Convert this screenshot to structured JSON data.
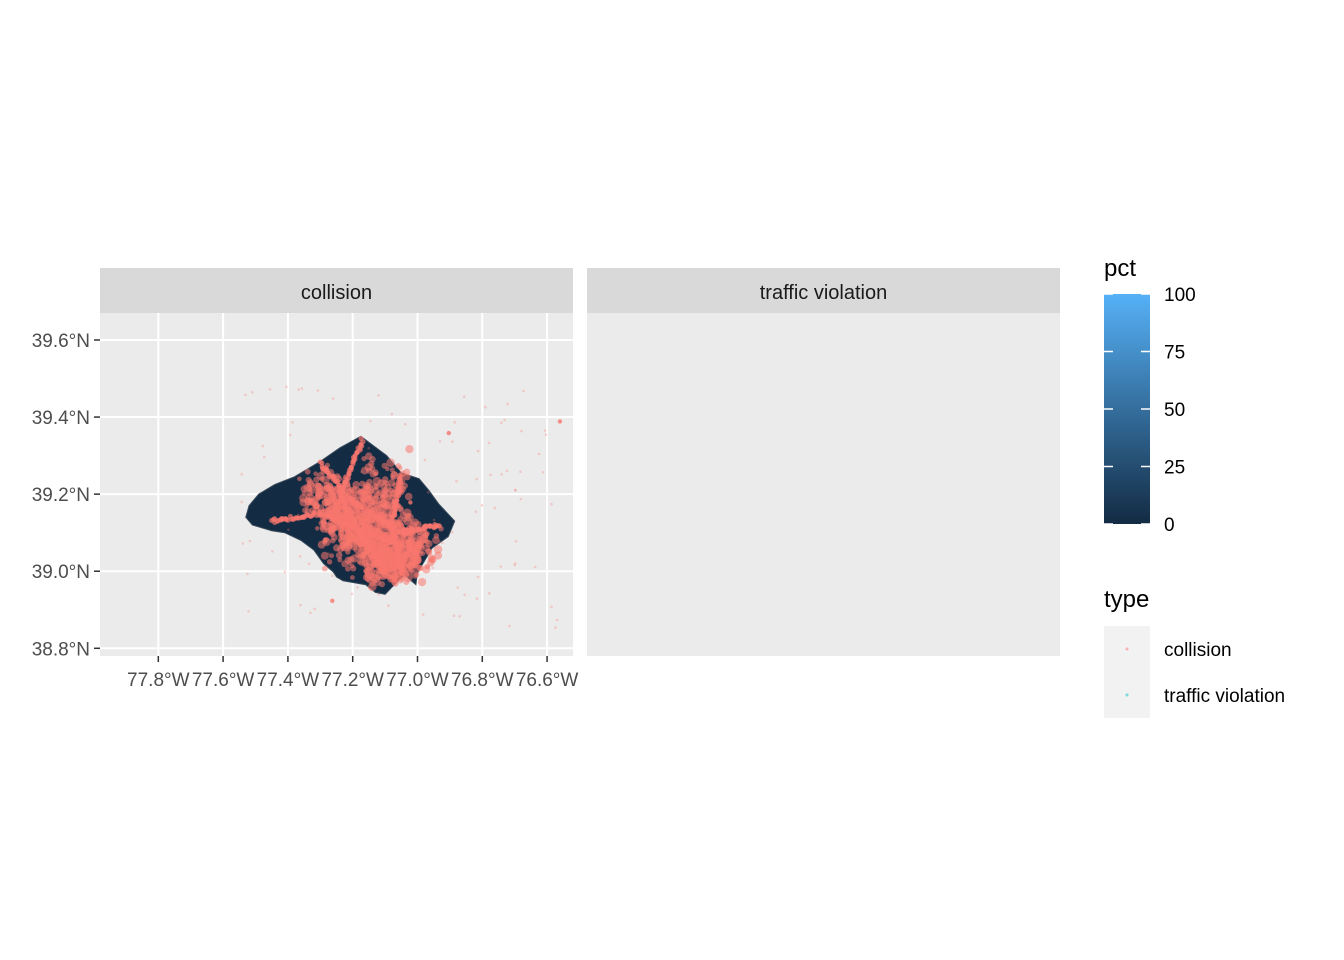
{
  "chart_data": {
    "type": "scatter",
    "facets": [
      {
        "label": "collision",
        "color": "#F8766D"
      },
      {
        "label": "traffic violation",
        "color": "#00BFC4"
      }
    ],
    "x_ticks": [
      {
        "value": -77.8,
        "label": "77.8°W"
      },
      {
        "value": -77.6,
        "label": "77.6°W"
      },
      {
        "value": -77.4,
        "label": "77.4°W"
      },
      {
        "value": -77.2,
        "label": "77.2°W"
      },
      {
        "value": -77.0,
        "label": "77.0°W"
      },
      {
        "value": -76.8,
        "label": "76.8°W"
      },
      {
        "value": -76.6,
        "label": "76.6°W"
      }
    ],
    "y_ticks": [
      {
        "value": 38.8,
        "label": "38.8°N"
      },
      {
        "value": 39.0,
        "label": "39.0°N"
      },
      {
        "value": 39.2,
        "label": "39.2°N"
      },
      {
        "value": 39.4,
        "label": "39.4°N"
      },
      {
        "value": 39.6,
        "label": "39.6°N"
      }
    ],
    "xlim": [
      -77.98,
      -76.52
    ],
    "ylim": [
      38.78,
      39.67
    ],
    "region_fill": "#132B43",
    "legend_fill": {
      "title": "pct",
      "low_color": "#132B43",
      "high_color": "#56B1F7",
      "range": [
        0,
        100
      ],
      "breaks": [
        {
          "value": 100,
          "label": "100"
        },
        {
          "value": 75,
          "label": "75"
        },
        {
          "value": 50,
          "label": "50"
        },
        {
          "value": 25,
          "label": "25"
        },
        {
          "value": 0,
          "label": "0"
        }
      ]
    },
    "legend_type": {
      "title": "type",
      "entries": [
        {
          "label": "collision",
          "color": "#F8766D"
        },
        {
          "label": "traffic violation",
          "color": "#00BFC4"
        }
      ]
    }
  }
}
